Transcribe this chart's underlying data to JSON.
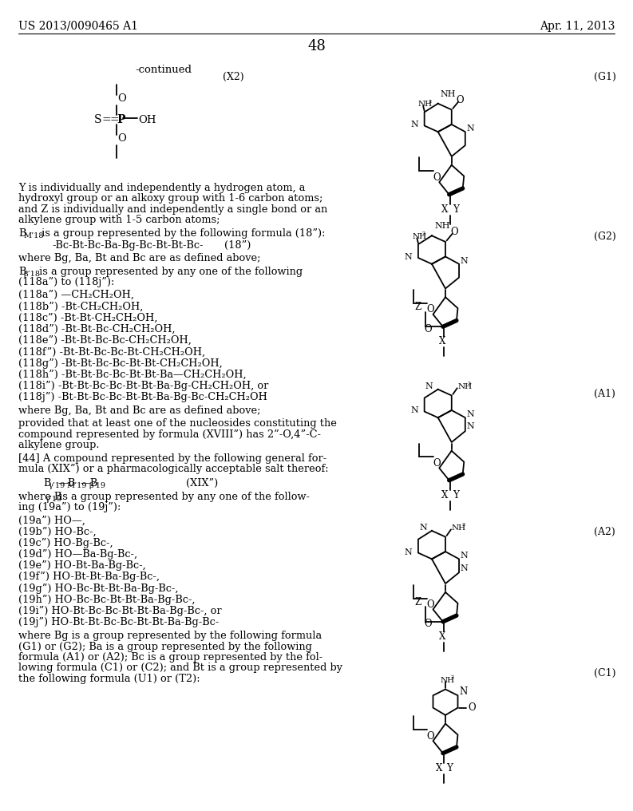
{
  "bg_color": "#ffffff",
  "header_left": "US 2013/0090465 A1",
  "header_right": "Apr. 11, 2013",
  "page_number": "48"
}
